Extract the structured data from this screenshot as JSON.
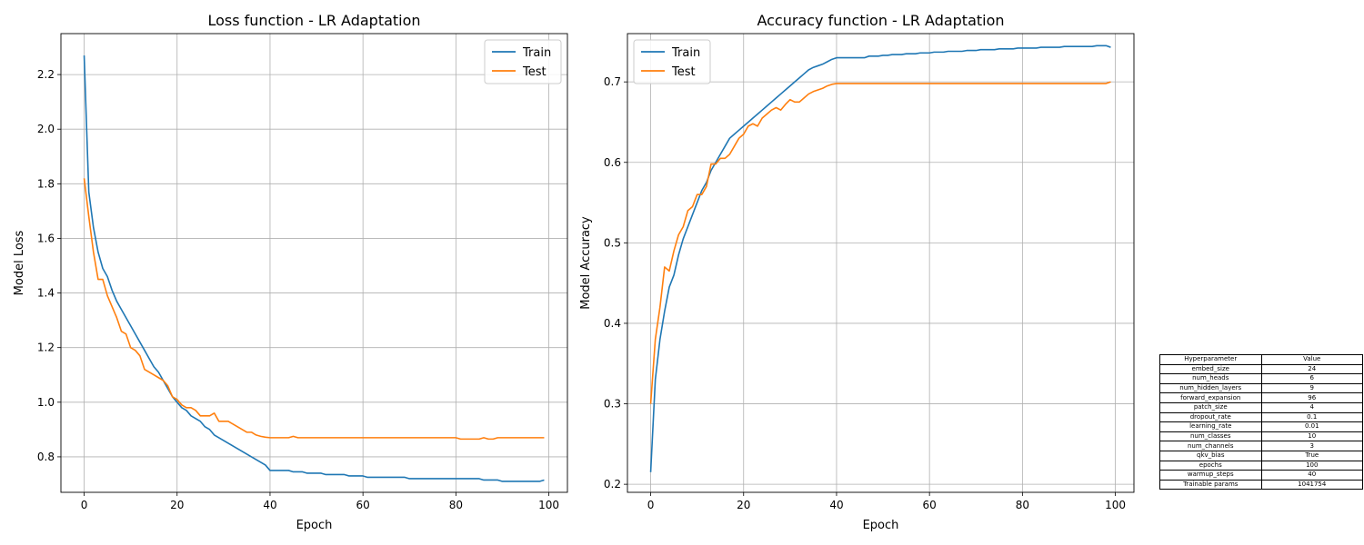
{
  "chart_data": [
    {
      "type": "line",
      "title": "Loss function - LR Adaptation",
      "xlabel": "Epoch",
      "ylabel": "Model Loss",
      "xlim": [
        -5,
        104
      ],
      "ylim": [
        0.67,
        2.35
      ],
      "xticks": [
        0,
        20,
        40,
        60,
        80,
        100
      ],
      "yticks": [
        0.8,
        1.0,
        1.2,
        1.4,
        1.6,
        1.8,
        2.0,
        2.2
      ],
      "grid": true,
      "legend": "top-right",
      "series": [
        {
          "name": "Train",
          "color": "#1f77b4",
          "values": [
            2.27,
            1.77,
            1.64,
            1.55,
            1.49,
            1.46,
            1.41,
            1.37,
            1.34,
            1.31,
            1.28,
            1.25,
            1.22,
            1.19,
            1.16,
            1.13,
            1.11,
            1.08,
            1.05,
            1.02,
            1.0,
            0.98,
            0.97,
            0.95,
            0.94,
            0.93,
            0.91,
            0.9,
            0.88,
            0.87,
            0.86,
            0.85,
            0.84,
            0.83,
            0.82,
            0.81,
            0.8,
            0.79,
            0.78,
            0.77,
            0.75,
            0.75,
            0.75,
            0.75,
            0.75,
            0.745,
            0.745,
            0.745,
            0.74,
            0.74,
            0.74,
            0.74,
            0.735,
            0.735,
            0.735,
            0.735,
            0.735,
            0.73,
            0.73,
            0.73,
            0.73,
            0.725,
            0.725,
            0.725,
            0.725,
            0.725,
            0.725,
            0.725,
            0.725,
            0.725,
            0.72,
            0.72,
            0.72,
            0.72,
            0.72,
            0.72,
            0.72,
            0.72,
            0.72,
            0.72,
            0.72,
            0.72,
            0.72,
            0.72,
            0.72,
            0.72,
            0.715,
            0.715,
            0.715,
            0.715,
            0.71,
            0.71,
            0.71,
            0.71,
            0.71,
            0.71,
            0.71,
            0.71,
            0.71,
            0.715
          ]
        },
        {
          "name": "Test",
          "color": "#ff7f0e",
          "values": [
            1.82,
            1.68,
            1.55,
            1.45,
            1.45,
            1.39,
            1.35,
            1.31,
            1.26,
            1.25,
            1.2,
            1.19,
            1.17,
            1.12,
            1.11,
            1.1,
            1.09,
            1.08,
            1.06,
            1.02,
            1.01,
            0.99,
            0.98,
            0.98,
            0.97,
            0.95,
            0.95,
            0.95,
            0.96,
            0.93,
            0.93,
            0.93,
            0.92,
            0.91,
            0.9,
            0.89,
            0.89,
            0.88,
            0.875,
            0.872,
            0.87,
            0.87,
            0.87,
            0.87,
            0.87,
            0.875,
            0.87,
            0.87,
            0.87,
            0.87,
            0.87,
            0.87,
            0.87,
            0.87,
            0.87,
            0.87,
            0.87,
            0.87,
            0.87,
            0.87,
            0.87,
            0.87,
            0.87,
            0.87,
            0.87,
            0.87,
            0.87,
            0.87,
            0.87,
            0.87,
            0.87,
            0.87,
            0.87,
            0.87,
            0.87,
            0.87,
            0.87,
            0.87,
            0.87,
            0.87,
            0.87,
            0.865,
            0.865,
            0.865,
            0.865,
            0.865,
            0.87,
            0.865,
            0.865,
            0.87,
            0.87,
            0.87,
            0.87,
            0.87,
            0.87,
            0.87,
            0.87,
            0.87,
            0.87,
            0.87
          ]
        }
      ]
    },
    {
      "type": "line",
      "title": "Accuracy function - LR Adaptation",
      "xlabel": "Epoch",
      "ylabel": "Model Accuracy",
      "xlim": [
        -5,
        104
      ],
      "ylim": [
        0.19,
        0.76
      ],
      "xticks": [
        0,
        20,
        40,
        60,
        80,
        100
      ],
      "yticks": [
        0.2,
        0.3,
        0.4,
        0.5,
        0.6,
        0.7
      ],
      "grid": true,
      "legend": "top-left",
      "series": [
        {
          "name": "Train",
          "color": "#1f77b4",
          "values": [
            0.215,
            0.33,
            0.38,
            0.415,
            0.445,
            0.46,
            0.485,
            0.505,
            0.52,
            0.535,
            0.55,
            0.565,
            0.575,
            0.59,
            0.6,
            0.61,
            0.62,
            0.63,
            0.635,
            0.64,
            0.645,
            0.65,
            0.655,
            0.66,
            0.665,
            0.67,
            0.675,
            0.68,
            0.685,
            0.69,
            0.695,
            0.7,
            0.705,
            0.71,
            0.715,
            0.718,
            0.72,
            0.722,
            0.725,
            0.728,
            0.73,
            0.73,
            0.73,
            0.73,
            0.73,
            0.73,
            0.73,
            0.732,
            0.732,
            0.732,
            0.733,
            0.733,
            0.734,
            0.734,
            0.734,
            0.735,
            0.735,
            0.735,
            0.736,
            0.736,
            0.736,
            0.737,
            0.737,
            0.737,
            0.738,
            0.738,
            0.738,
            0.738,
            0.739,
            0.739,
            0.739,
            0.74,
            0.74,
            0.74,
            0.74,
            0.741,
            0.741,
            0.741,
            0.741,
            0.742,
            0.742,
            0.742,
            0.742,
            0.742,
            0.743,
            0.743,
            0.743,
            0.743,
            0.743,
            0.744,
            0.744,
            0.744,
            0.744,
            0.744,
            0.744,
            0.744,
            0.745,
            0.745,
            0.745,
            0.743
          ]
        },
        {
          "name": "Test",
          "color": "#ff7f0e",
          "values": [
            0.3,
            0.38,
            0.42,
            0.47,
            0.465,
            0.49,
            0.51,
            0.52,
            0.54,
            0.545,
            0.56,
            0.56,
            0.57,
            0.598,
            0.598,
            0.605,
            0.605,
            0.61,
            0.62,
            0.63,
            0.635,
            0.645,
            0.648,
            0.645,
            0.655,
            0.66,
            0.665,
            0.668,
            0.665,
            0.672,
            0.678,
            0.675,
            0.675,
            0.68,
            0.685,
            0.688,
            0.69,
            0.692,
            0.695,
            0.697,
            0.698,
            0.698,
            0.698,
            0.698,
            0.698,
            0.698,
            0.698,
            0.698,
            0.698,
            0.698,
            0.698,
            0.698,
            0.698,
            0.698,
            0.698,
            0.698,
            0.698,
            0.698,
            0.698,
            0.698,
            0.698,
            0.698,
            0.698,
            0.698,
            0.698,
            0.698,
            0.698,
            0.698,
            0.698,
            0.698,
            0.698,
            0.698,
            0.698,
            0.698,
            0.698,
            0.698,
            0.698,
            0.698,
            0.698,
            0.698,
            0.698,
            0.698,
            0.698,
            0.698,
            0.698,
            0.698,
            0.698,
            0.698,
            0.698,
            0.698,
            0.698,
            0.698,
            0.698,
            0.698,
            0.698,
            0.698,
            0.698,
            0.698,
            0.698,
            0.7
          ]
        }
      ]
    }
  ],
  "hyper_table": {
    "header": [
      "Hyperparameter",
      "Value"
    ],
    "rows": [
      [
        "embed_size",
        "24"
      ],
      [
        "num_heads",
        "6"
      ],
      [
        "num_hidden_layers",
        "9"
      ],
      [
        "forward_expansion",
        "96"
      ],
      [
        "patch_size",
        "4"
      ],
      [
        "dropout_rate",
        "0.1"
      ],
      [
        "learning_rate",
        "0.01"
      ],
      [
        "num_classes",
        "10"
      ],
      [
        "num_channels",
        "3"
      ],
      [
        "qkv_bias",
        "True"
      ],
      [
        "epochs",
        "100"
      ],
      [
        "warmup_steps",
        "40"
      ],
      [
        "Trainable params",
        "1041754"
      ]
    ]
  }
}
